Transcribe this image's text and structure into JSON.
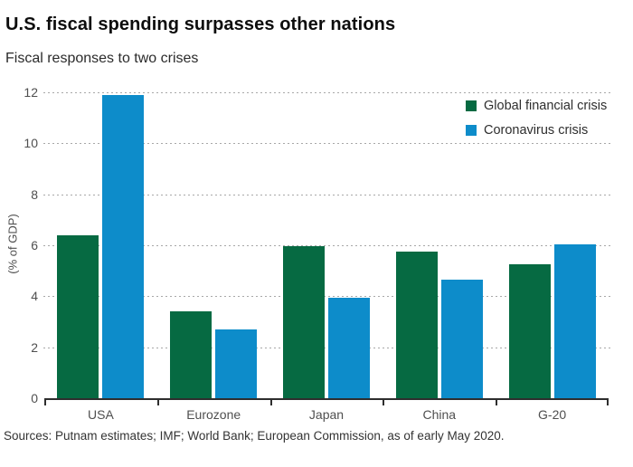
{
  "header": {
    "title": "U.S. fiscal spending surpasses other nations",
    "subtitle": "Fiscal responses to two crises"
  },
  "chart_data": {
    "type": "bar",
    "categories": [
      "USA",
      "Eurozone",
      "Japan",
      "China",
      "G-20"
    ],
    "series": [
      {
        "name": "Global financial crisis",
        "color": "#066a42",
        "values": [
          6.4,
          3.4,
          5.95,
          5.75,
          5.25
        ]
      },
      {
        "name": "Coronavirus crisis",
        "color": "#0d8cca",
        "values": [
          11.9,
          2.7,
          3.95,
          4.65,
          6.05
        ]
      }
    ],
    "title": "U.S. fiscal spending surpasses other nations",
    "subtitle": "Fiscal responses to two crises",
    "xlabel": "",
    "ylabel": "(% of GDP)",
    "yticks": [
      0,
      2,
      4,
      6,
      8,
      10,
      12
    ],
    "ylim": [
      0,
      12
    ],
    "grid": "horizontal-dashed",
    "legend_position": "top-right"
  },
  "footer": {
    "sources": "Sources: Putnam estimates; IMF; World Bank; European Commission, as of early May 2020."
  }
}
